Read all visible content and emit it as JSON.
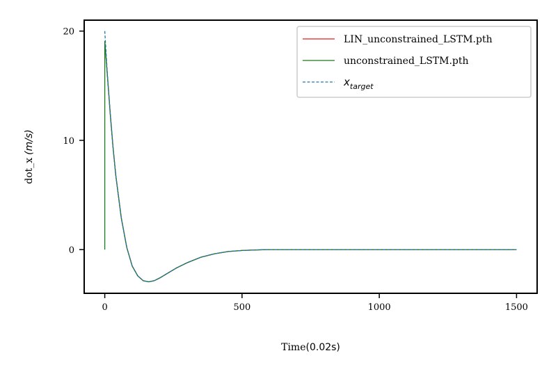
{
  "chart_data": {
    "type": "line",
    "title": "",
    "xlabel_prefix": "Time",
    "xlabel_math": "(0.02s)",
    "ylabel_prefix": "dot_x",
    "ylabel_math": "(m/s)",
    "xlim": [
      -75,
      1575
    ],
    "ylim": [
      -4,
      21
    ],
    "xticks": [
      0,
      500,
      1000,
      1500
    ],
    "xtick_labels": [
      "0",
      "500",
      "1000",
      "1500"
    ],
    "yticks": [
      0,
      10,
      20
    ],
    "ytick_labels": [
      "0",
      "10",
      "20"
    ],
    "grid": false,
    "legend_position": "top-right",
    "series": [
      {
        "name": "LIN_unconstrained_LSTM.pth",
        "color": "#e31a1c",
        "style": "solid",
        "x": [
          0,
          10,
          20,
          30,
          40,
          60,
          80,
          100,
          120,
          140,
          160,
          180,
          200,
          230,
          260,
          300,
          350,
          400,
          450,
          500,
          550,
          600,
          700,
          800,
          1000,
          1200,
          1500
        ],
        "y": [
          19.1,
          15.8,
          12.4,
          9.4,
          6.8,
          2.9,
          0.2,
          -1.5,
          -2.4,
          -2.85,
          -2.95,
          -2.85,
          -2.6,
          -2.15,
          -1.7,
          -1.2,
          -0.7,
          -0.38,
          -0.18,
          -0.08,
          -0.03,
          0.0,
          0.0,
          0.0,
          0.0,
          0.0,
          0.0
        ]
      },
      {
        "name": "unconstrained_LSTM.pth",
        "color": "#1a7a1a",
        "style": "solid",
        "x": [
          0,
          0,
          10,
          20,
          30,
          40,
          60,
          80,
          100,
          120,
          140,
          160,
          180,
          200,
          230,
          260,
          300,
          350,
          400,
          450,
          500,
          550,
          600,
          700,
          800,
          1000,
          1200,
          1500
        ],
        "y": [
          0,
          19.1,
          15.8,
          12.4,
          9.4,
          6.8,
          2.9,
          0.2,
          -1.5,
          -2.4,
          -2.85,
          -2.95,
          -2.85,
          -2.6,
          -2.15,
          -1.7,
          -1.2,
          -0.7,
          -0.38,
          -0.18,
          -0.08,
          -0.03,
          0.0,
          0.0,
          0.0,
          0.0,
          0.0,
          0.0
        ]
      },
      {
        "name": "x_target",
        "legend_main": "x",
        "legend_sub": "target",
        "color": "#1f77b4",
        "style": "dashed",
        "x": [
          0,
          10,
          20,
          30,
          40,
          60,
          80,
          100,
          120,
          140,
          160,
          180,
          200,
          230,
          260,
          300,
          350,
          400,
          450,
          500,
          550,
          600,
          700,
          800,
          1000,
          1200,
          1500
        ],
        "y": [
          20.0,
          15.9,
          12.4,
          9.4,
          6.8,
          2.9,
          0.2,
          -1.5,
          -2.4,
          -2.85,
          -2.95,
          -2.85,
          -2.6,
          -2.15,
          -1.7,
          -1.2,
          -0.7,
          -0.38,
          -0.18,
          -0.08,
          -0.03,
          0.0,
          0.0,
          0.0,
          0.0,
          0.0,
          0.0
        ]
      }
    ]
  }
}
